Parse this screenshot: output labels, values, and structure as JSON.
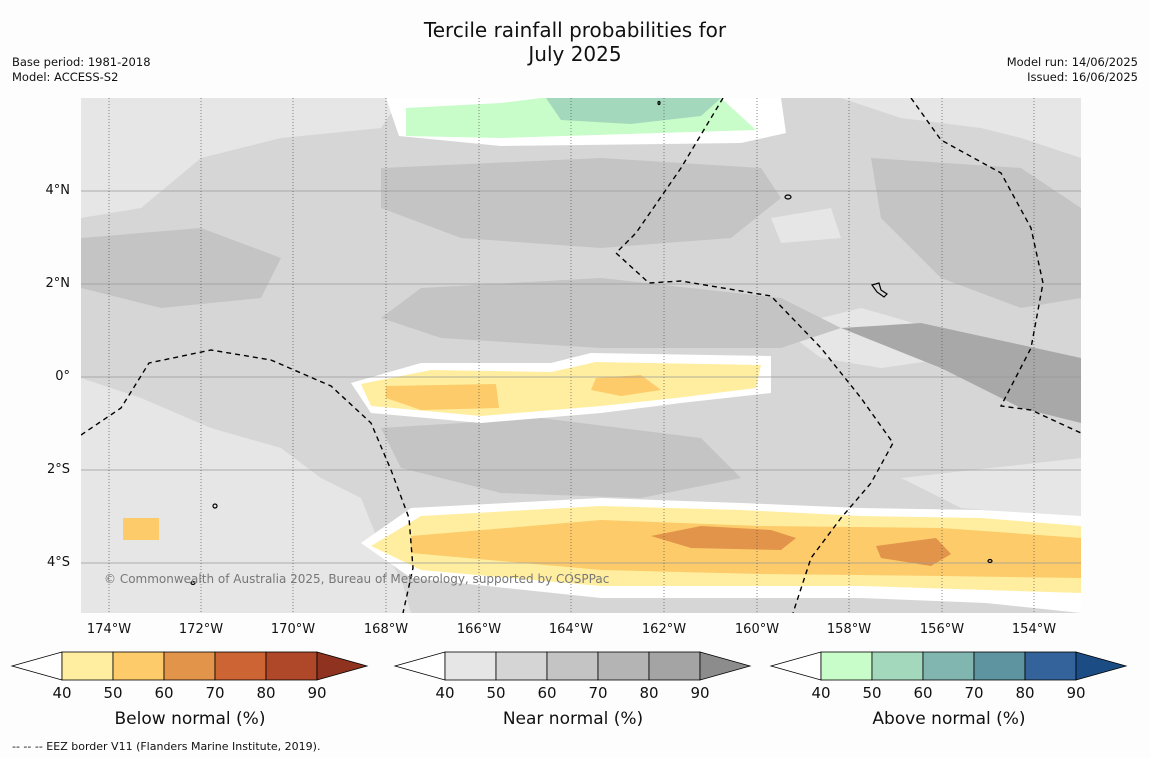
{
  "title": {
    "line1": "Tercile rainfall probabilities for",
    "line2": "July 2025"
  },
  "meta_left": {
    "line1": "Base period: 1981-2018",
    "line2": "Model: ACCESS-S2"
  },
  "meta_right": {
    "line1": "Model run: 14/06/2025",
    "line2": "Issued: 16/06/2025"
  },
  "lat_labels": [
    "4°N",
    "2°N",
    "0°",
    "2°S",
    "4°S"
  ],
  "lon_labels": [
    "174°W",
    "172°W",
    "170°W",
    "168°W",
    "166°W",
    "164°W",
    "162°W",
    "160°W",
    "158°W",
    "156°W",
    "154°W"
  ],
  "copyright": "© Commonwealth of Australia 2025, Bureau of Meteorology, supported by COSPPac",
  "colorbars": [
    {
      "label": "Below normal (%)",
      "ticks": [
        "40",
        "50",
        "60",
        "70",
        "80",
        "90"
      ],
      "colors": [
        "#ffeea0",
        "#fdcb6a",
        "#e1944a",
        "#cc6434",
        "#af4828",
        "#8f3220"
      ]
    },
    {
      "label": "Near normal (%)",
      "ticks": [
        "40",
        "50",
        "60",
        "70",
        "80",
        "90"
      ],
      "colors": [
        "#e6e6e6",
        "#d5d5d5",
        "#c4c4c4",
        "#b4b4b4",
        "#a4a4a4",
        "#8c8c8c"
      ]
    },
    {
      "label": "Above normal (%)",
      "ticks": [
        "40",
        "50",
        "60",
        "70",
        "80",
        "90"
      ],
      "colors": [
        "#c8fcc8",
        "#a4d8bd",
        "#80b5b0",
        "#5e93a0",
        "#33639a",
        "#1c4c84"
      ]
    }
  ],
  "footer": "--  --  -- EEZ border V11 (Flanders Marine Institute, 2019)."
}
